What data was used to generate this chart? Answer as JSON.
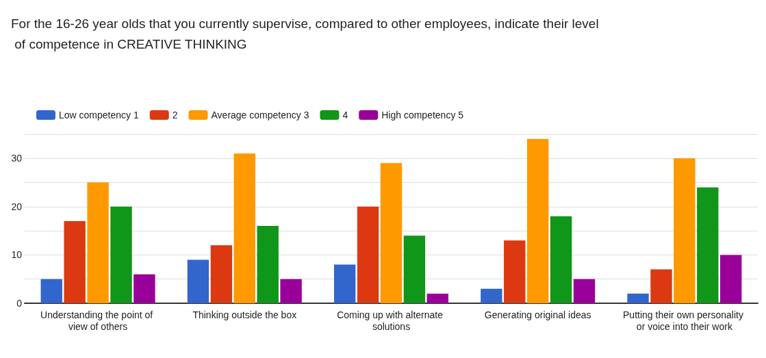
{
  "chart_data": {
    "type": "bar",
    "title": "For the 16-26 year olds that you currently supervise, compared to other employees, indicate their level of competence in CREATIVE THINKING",
    "categories": [
      "Understanding the point of view of others",
      "Thinking outside the box",
      "Coming up with alternate solutions",
      "Generating original ideas",
      "Putting their own personality or voice into their work"
    ],
    "series": [
      {
        "name": "Low competency 1",
        "color": "#3366cc",
        "values": [
          5,
          9,
          8,
          3,
          2
        ]
      },
      {
        "name": "2",
        "color": "#dc3912",
        "values": [
          17,
          12,
          20,
          13,
          7
        ]
      },
      {
        "name": "Average competency 3",
        "color": "#ff9900",
        "values": [
          25,
          31,
          29,
          34,
          30
        ]
      },
      {
        "name": "4",
        "color": "#109618",
        "values": [
          20,
          16,
          14,
          18,
          24
        ]
      },
      {
        "name": "High competency 5",
        "color": "#990099",
        "values": [
          6,
          5,
          2,
          5,
          10
        ]
      }
    ],
    "ylim": [
      0,
      35
    ],
    "yticks": [
      0,
      {
        "value": 5,
        "label": null
      },
      10,
      {
        "value": 15,
        "label": null
      },
      20,
      {
        "value": 25,
        "label": null
      },
      30,
      {
        "value": 35,
        "label": null
      }
    ],
    "grid": "y",
    "legend": "top left"
  }
}
